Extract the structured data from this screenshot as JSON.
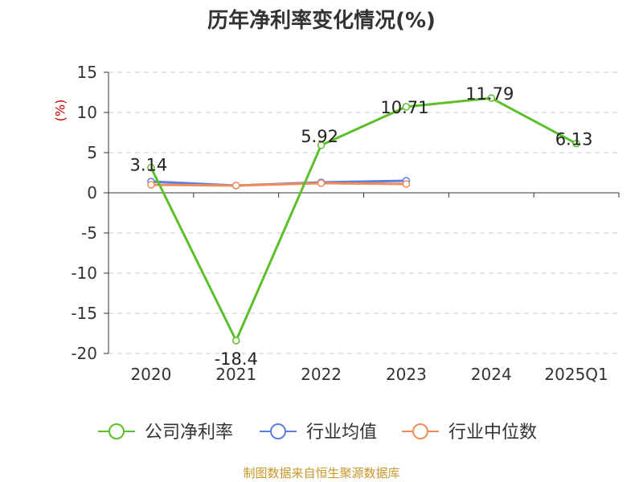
{
  "chart_data": {
    "type": "line",
    "title": "历年净利率变化情况(%)",
    "ylabel": "(%)",
    "xlabel": "",
    "categories": [
      "2020",
      "2021",
      "2022",
      "2023",
      "2024",
      "2025Q1"
    ],
    "ylim": [
      -20,
      15
    ],
    "yticks": [
      15,
      10,
      5,
      0,
      -5,
      -10,
      -15,
      -20
    ],
    "grid": true,
    "legend_position": "bottom",
    "series": [
      {
        "name": "公司净利率",
        "color": "#5cbf2a",
        "values": [
          3.14,
          -18.4,
          5.92,
          10.71,
          11.79,
          6.13
        ],
        "labels": [
          "3.14",
          "-18.4",
          "5.92",
          "10.71",
          "11.79",
          "6.13"
        ]
      },
      {
        "name": "行业均值",
        "color": "#5b7fde",
        "values": [
          1.4,
          0.9,
          1.3,
          1.5,
          null,
          null
        ]
      },
      {
        "name": "行业中位数",
        "color": "#f08c5a",
        "values": [
          1.0,
          0.9,
          1.2,
          1.1,
          null,
          null
        ]
      }
    ]
  },
  "source": "制图数据来自恒生聚源数据库"
}
